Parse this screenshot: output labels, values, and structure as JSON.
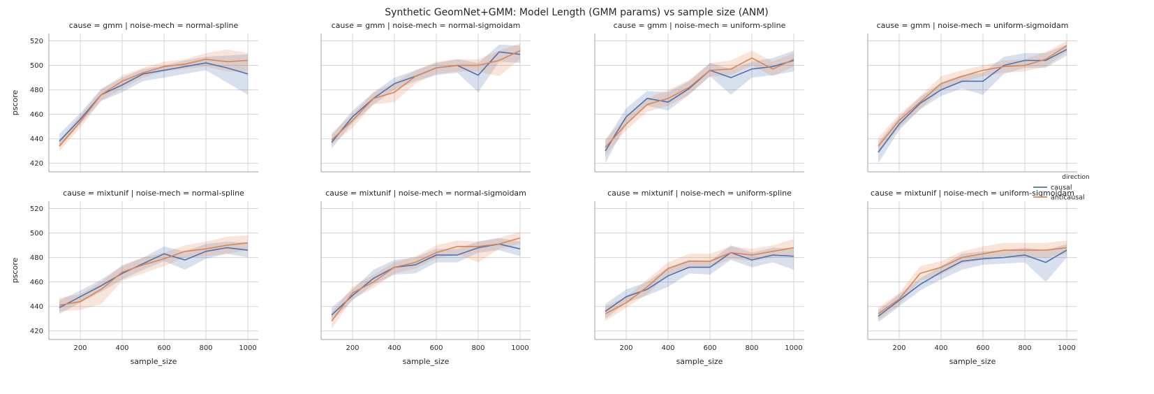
{
  "title": "Synthetic GeomNet+GMM: Model Length (GMM params) vs sample size (ANM)",
  "colors": {
    "causal": "#4c72b0",
    "anticausal": "#dd8452",
    "grid": "#d3d3d3",
    "axis": "#b0b0b0"
  },
  "legend": {
    "title": "direction",
    "placement": "right",
    "entries": [
      {
        "label": "causal",
        "color": "#4c72b0"
      },
      {
        "label": "anticausal",
        "color": "#dd8452"
      }
    ]
  },
  "chart_data": [
    {
      "type": "line",
      "title": "cause = gmm | noise-mech = normal-spline",
      "xlabel": "",
      "ylabel": "pscore",
      "x": [
        100,
        200,
        300,
        400,
        500,
        600,
        700,
        800,
        900,
        1000
      ],
      "series": [
        {
          "name": "causal",
          "values": [
            438,
            456,
            476,
            484,
            493,
            496,
            499,
            502,
            498,
            493
          ],
          "lower": [
            433,
            452,
            471,
            478,
            487,
            490,
            493,
            496,
            486,
            476
          ],
          "upper": [
            444,
            461,
            481,
            490,
            497,
            500,
            504,
            507,
            508,
            509
          ]
        },
        {
          "name": "anticausal",
          "values": [
            434,
            454,
            476,
            487,
            494,
            499,
            501,
            505,
            503,
            504
          ],
          "lower": [
            430,
            449,
            471,
            481,
            490,
            495,
            497,
            499,
            495,
            495
          ],
          "upper": [
            439,
            459,
            480,
            492,
            498,
            503,
            505,
            510,
            513,
            510
          ]
        }
      ]
    },
    {
      "type": "line",
      "title": "cause = gmm | noise-mech = normal-sigmoidam",
      "xlabel": "",
      "ylabel": "",
      "x": [
        100,
        200,
        300,
        400,
        500,
        600,
        700,
        800,
        900,
        1000
      ],
      "series": [
        {
          "name": "causal",
          "values": [
            437,
            458,
            473,
            485,
            491,
            498,
            500,
            492,
            511,
            509
          ],
          "lower": [
            432,
            453,
            468,
            480,
            487,
            492,
            494,
            478,
            503,
            502
          ],
          "upper": [
            443,
            463,
            478,
            490,
            496,
            502,
            505,
            502,
            517,
            516
          ]
        },
        {
          "name": "anticausal",
          "values": [
            439,
            455,
            473,
            478,
            491,
            498,
            500,
            500,
            504,
            512
          ],
          "lower": [
            435,
            449,
            468,
            470,
            485,
            493,
            495,
            495,
            491,
            505
          ],
          "upper": [
            445,
            460,
            478,
            486,
            496,
            503,
            505,
            505,
            512,
            518
          ]
        }
      ]
    },
    {
      "type": "line",
      "title": "cause = gmm | noise-mech = uniform-spline",
      "xlabel": "",
      "ylabel": "",
      "x": [
        100,
        200,
        300,
        400,
        500,
        600,
        700,
        800,
        900,
        1000
      ],
      "series": [
        {
          "name": "causal",
          "values": [
            430,
            458,
            473,
            470,
            481,
            496,
            490,
            497,
            499,
            504
          ],
          "lower": [
            420,
            452,
            467,
            463,
            476,
            491,
            476,
            490,
            492,
            495
          ],
          "upper": [
            438,
            465,
            479,
            478,
            487,
            502,
            497,
            503,
            506,
            512
          ]
        },
        {
          "name": "anticausal",
          "values": [
            433,
            452,
            468,
            473,
            482,
            496,
            497,
            506,
            497,
            505
          ],
          "lower": [
            426,
            447,
            462,
            467,
            476,
            491,
            492,
            500,
            491,
            499
          ],
          "upper": [
            440,
            458,
            473,
            480,
            488,
            502,
            504,
            512,
            503,
            510
          ]
        }
      ]
    },
    {
      "type": "line",
      "title": "cause = gmm | noise-mech = uniform-sigmoidam",
      "xlabel": "",
      "ylabel": "",
      "x": [
        100,
        200,
        300,
        400,
        500,
        600,
        700,
        800,
        900,
        1000
      ],
      "series": [
        {
          "name": "causal",
          "values": [
            429,
            452,
            469,
            480,
            487,
            487,
            500,
            504,
            504,
            513
          ],
          "lower": [
            420,
            447,
            464,
            475,
            481,
            476,
            493,
            498,
            498,
            508
          ],
          "upper": [
            437,
            458,
            474,
            486,
            492,
            494,
            507,
            510,
            510,
            517
          ]
        },
        {
          "name": "anticausal",
          "values": [
            434,
            455,
            470,
            485,
            491,
            496,
            499,
            500,
            505,
            516
          ],
          "lower": [
            428,
            449,
            464,
            480,
            486,
            491,
            494,
            495,
            499,
            511
          ],
          "upper": [
            441,
            460,
            475,
            491,
            496,
            500,
            504,
            505,
            511,
            520
          ]
        }
      ]
    },
    {
      "type": "line",
      "title": "cause = mixtunif | noise-mech = normal-spline",
      "xlabel": "sample_size",
      "ylabel": "pscore",
      "x": [
        100,
        200,
        300,
        400,
        500,
        600,
        700,
        800,
        900,
        1000
      ],
      "series": [
        {
          "name": "causal",
          "values": [
            439,
            448,
            457,
            467,
            475,
            483,
            478,
            485,
            488,
            486
          ],
          "lower": [
            434,
            443,
            452,
            462,
            470,
            477,
            470,
            479,
            483,
            480
          ],
          "upper": [
            445,
            453,
            462,
            473,
            480,
            489,
            485,
            491,
            493,
            492
          ]
        },
        {
          "name": "anticausal",
          "values": [
            441,
            444,
            454,
            468,
            474,
            479,
            485,
            487,
            490,
            492
          ],
          "lower": [
            436,
            437,
            442,
            461,
            467,
            473,
            480,
            481,
            483,
            486
          ],
          "upper": [
            447,
            450,
            460,
            474,
            480,
            484,
            490,
            493,
            497,
            498
          ]
        }
      ]
    },
    {
      "type": "line",
      "title": "cause = mixtunif | noise-mech = normal-sigmoidam",
      "xlabel": "sample_size",
      "ylabel": "",
      "x": [
        100,
        200,
        300,
        400,
        500,
        600,
        700,
        800,
        900,
        1000
      ],
      "series": [
        {
          "name": "causal",
          "values": [
            433,
            449,
            463,
            472,
            474,
            482,
            482,
            488,
            491,
            487
          ],
          "lower": [
            428,
            445,
            458,
            466,
            467,
            476,
            476,
            484,
            486,
            481
          ],
          "upper": [
            439,
            454,
            470,
            478,
            480,
            487,
            487,
            493,
            496,
            493
          ]
        },
        {
          "name": "anticausal",
          "values": [
            428,
            451,
            460,
            472,
            476,
            484,
            489,
            489,
            491,
            496
          ],
          "lower": [
            422,
            446,
            455,
            467,
            471,
            479,
            483,
            476,
            487,
            491
          ],
          "upper": [
            435,
            456,
            466,
            476,
            481,
            490,
            494,
            493,
            496,
            501
          ]
        }
      ]
    },
    {
      "type": "line",
      "title": "cause = mixtunif | noise-mech = uniform-spline",
      "xlabel": "sample_size",
      "ylabel": "",
      "x": [
        100,
        200,
        300,
        400,
        500,
        600,
        700,
        800,
        900,
        1000
      ],
      "series": [
        {
          "name": "causal",
          "values": [
            436,
            448,
            454,
            465,
            472,
            472,
            484,
            478,
            482,
            481
          ],
          "lower": [
            430,
            443,
            449,
            456,
            467,
            466,
            478,
            472,
            476,
            470
          ],
          "upper": [
            442,
            454,
            460,
            472,
            478,
            477,
            490,
            484,
            488,
            487
          ]
        },
        {
          "name": "anticausal",
          "values": [
            434,
            443,
            456,
            471,
            477,
            477,
            484,
            482,
            485,
            488
          ],
          "lower": [
            428,
            439,
            450,
            466,
            472,
            472,
            479,
            477,
            480,
            482
          ],
          "upper": [
            440,
            448,
            462,
            476,
            483,
            483,
            489,
            487,
            490,
            495
          ]
        }
      ]
    },
    {
      "type": "line",
      "title": "cause = mixtunif | noise-mech = uniform-sigmoidam",
      "xlabel": "sample_size",
      "ylabel": "",
      "x": [
        100,
        200,
        300,
        400,
        500,
        600,
        700,
        800,
        900,
        1000
      ],
      "series": [
        {
          "name": "causal",
          "values": [
            432,
            445,
            458,
            468,
            477,
            479,
            480,
            482,
            476,
            486
          ],
          "lower": [
            427,
            440,
            453,
            462,
            470,
            474,
            475,
            476,
            460,
            480
          ],
          "upper": [
            437,
            450,
            463,
            473,
            483,
            485,
            486,
            488,
            486,
            491
          ]
        },
        {
          "name": "anticausal",
          "values": [
            434,
            446,
            467,
            472,
            480,
            483,
            486,
            486,
            486,
            488
          ],
          "lower": [
            429,
            441,
            461,
            466,
            475,
            478,
            481,
            480,
            480,
            483
          ],
          "upper": [
            439,
            451,
            473,
            477,
            485,
            489,
            492,
            492,
            492,
            494
          ]
        }
      ]
    }
  ],
  "axes": {
    "xlim": [
      50,
      1050
    ],
    "ylim": [
      413,
      526
    ],
    "xticks": [
      200,
      400,
      600,
      800,
      1000
    ],
    "yticks": [
      420,
      440,
      460,
      480,
      500,
      520
    ],
    "grid": true
  }
}
